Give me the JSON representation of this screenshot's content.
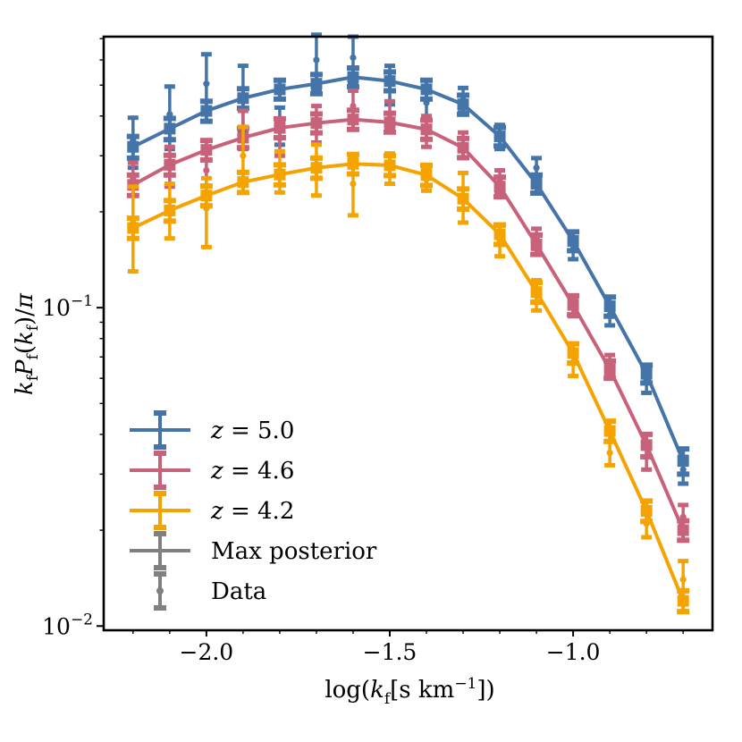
{
  "chart_data": {
    "type": "line",
    "xlabel": "log(k_f[s km^-1])",
    "ylabel": "k_f P_f(k_f)/π",
    "xlim": [
      -2.28,
      -0.62
    ],
    "ylim": [
      0.0097,
      0.71
    ],
    "yscale": "log",
    "x_ticks": [
      {
        "value": -2.0,
        "label": "−2.0"
      },
      {
        "value": -1.5,
        "label": "−1.5"
      },
      {
        "value": -1.0,
        "label": "−1.0"
      }
    ],
    "y_ticks": [
      {
        "value": 0.1,
        "base": "10",
        "exp": "−1"
      },
      {
        "value": 0.01,
        "base": "10",
        "exp": "−2"
      }
    ],
    "x": [
      -2.2,
      -2.1,
      -2.0,
      -1.9,
      -1.8,
      -1.7,
      -1.6,
      -1.5,
      -1.4,
      -1.3,
      -1.2,
      -1.1,
      -1.0,
      -0.9,
      -0.8,
      -0.7
    ],
    "series": [
      {
        "name": "z = 5.0",
        "color": "#4575a8",
        "model": [
          0.32,
          0.365,
          0.415,
          0.455,
          0.485,
          0.505,
          0.53,
          0.515,
          0.485,
          0.435,
          0.345,
          0.245,
          0.162,
          0.101,
          0.062,
          0.033
        ],
        "model_err": [
          0.025,
          0.028,
          0.03,
          0.032,
          0.033,
          0.035,
          0.036,
          0.035,
          0.033,
          0.03,
          0.023,
          0.016,
          0.011,
          0.007,
          0.004,
          0.003
        ],
        "data": [
          0.335,
          0.405,
          0.505,
          0.465,
          0.375,
          0.6,
          0.61,
          0.505,
          0.44,
          0.45,
          0.345,
          0.275,
          0.153,
          0.095,
          0.059,
          0.031
        ],
        "data_err": [
          0.06,
          0.09,
          0.12,
          0.11,
          0.05,
          0.12,
          0.1,
          0.07,
          0.05,
          0.04,
          0.03,
          0.02,
          0.011,
          0.007,
          0.005,
          0.003
        ]
      },
      {
        "name": "z = 4.6",
        "color": "#c8627a",
        "model": [
          0.243,
          0.281,
          0.313,
          0.342,
          0.367,
          0.38,
          0.39,
          0.382,
          0.363,
          0.318,
          0.24,
          0.158,
          0.102,
          0.064,
          0.037,
          0.02
        ],
        "model_err": [
          0.018,
          0.02,
          0.022,
          0.024,
          0.025,
          0.026,
          0.027,
          0.026,
          0.025,
          0.022,
          0.017,
          0.011,
          0.007,
          0.004,
          0.003,
          0.0014
        ],
        "data": [
          0.255,
          0.28,
          0.27,
          0.365,
          0.34,
          0.38,
          0.43,
          0.405,
          0.36,
          0.325,
          0.25,
          0.165,
          0.101,
          0.066,
          0.034,
          0.022
        ],
        "data_err": [
          0.03,
          0.04,
          0.04,
          0.05,
          0.04,
          0.05,
          0.05,
          0.04,
          0.04,
          0.03,
          0.02,
          0.012,
          0.007,
          0.005,
          0.003,
          0.002
        ]
      },
      {
        "name": "z = 4.2",
        "color": "#f4a300",
        "model": [
          0.178,
          0.202,
          0.225,
          0.248,
          0.262,
          0.275,
          0.283,
          0.28,
          0.261,
          0.22,
          0.17,
          0.112,
          0.072,
          0.041,
          0.023,
          0.012
        ],
        "model_err": [
          0.013,
          0.015,
          0.016,
          0.018,
          0.019,
          0.02,
          0.02,
          0.02,
          0.019,
          0.016,
          0.012,
          0.008,
          0.005,
          0.003,
          0.0017,
          0.0009
        ],
        "data": [
          0.185,
          0.205,
          0.205,
          0.3,
          0.27,
          0.275,
          0.245,
          0.275,
          0.253,
          0.225,
          0.163,
          0.11,
          0.067,
          0.035,
          0.021,
          0.014
        ],
        "data_err": [
          0.055,
          0.04,
          0.05,
          0.07,
          0.04,
          0.05,
          0.05,
          0.03,
          0.02,
          0.04,
          0.018,
          0.012,
          0.006,
          0.003,
          0.002,
          0.002
        ]
      }
    ],
    "legend": {
      "placement": "lower-left",
      "entries": [
        {
          "label": "z = 5.0",
          "color": "#4575a8",
          "kind": "line"
        },
        {
          "label": "z = 4.6",
          "color": "#c8627a",
          "kind": "line"
        },
        {
          "label": "z = 4.2",
          "color": "#f4a300",
          "kind": "line"
        },
        {
          "label": "Max posterior",
          "color": "#808080",
          "kind": "line"
        },
        {
          "label": "Data",
          "color": "#808080",
          "kind": "point"
        }
      ]
    }
  }
}
